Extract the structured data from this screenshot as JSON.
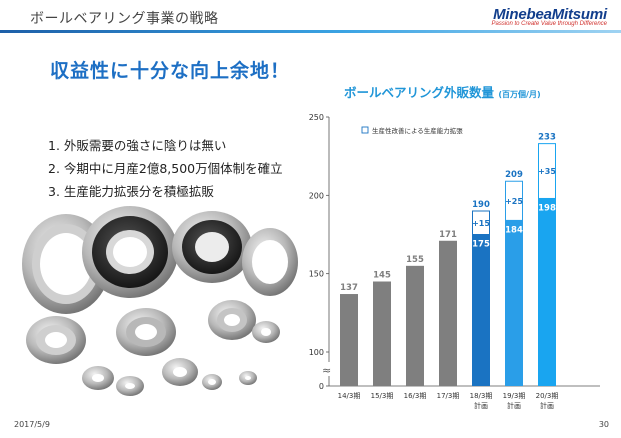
{
  "header": {
    "title": "ボールベアリング事業の戦略",
    "logo": "MinebeaMitsumi",
    "tagline": "Passion to Create Value through Difference"
  },
  "headline": "収益性に十分な向上余地！",
  "bullets": [
    "1. 外販需要の強さに陰りは無い",
    "2. 今期中に月産2億8,500万個体制を確立",
    "3. 生産能力拡張分を積極拡販"
  ],
  "footer": {
    "date": "2017/5/9",
    "page": "30"
  },
  "colors": {
    "actual": "#7f7f7f",
    "plan18": "#1a73c2",
    "plan19": "#2a9ee8",
    "plan20": "#19a5f0",
    "label_gray": "#7f7f7f",
    "label_blue": "#1a73c2"
  },
  "chart_data": {
    "type": "bar",
    "title": "ボールベアリング外販数量",
    "unit": "(百万個/月)",
    "categories": [
      "14/3期",
      "15/3期",
      "16/3期",
      "17/3期",
      "18/3期\n計画",
      "19/3期\n計画",
      "20/3期\n計画"
    ],
    "series": [
      {
        "name": "base",
        "values": [
          137,
          145,
          155,
          171,
          175,
          184,
          198
        ]
      },
      {
        "name": "生産性改善による生産能力拡張",
        "values": [
          0,
          0,
          0,
          0,
          15,
          25,
          35
        ]
      }
    ],
    "base_labels": [
      "137",
      "145",
      "155",
      "171",
      "175",
      "184",
      "198"
    ],
    "increment_labels": [
      "",
      "",
      "",
      "",
      "+15",
      "+25",
      "+35"
    ],
    "totals": [
      "",
      "",
      "",
      "",
      "190",
      "209",
      "233"
    ],
    "legend": "生産性改善による生産能力拡張",
    "yticks": [
      "250",
      "200",
      "150",
      "100",
      "0"
    ],
    "ylim": [
      0,
      250
    ],
    "axis_break": true,
    "axis_break_range": [
      0,
      100
    ],
    "grid": false
  }
}
